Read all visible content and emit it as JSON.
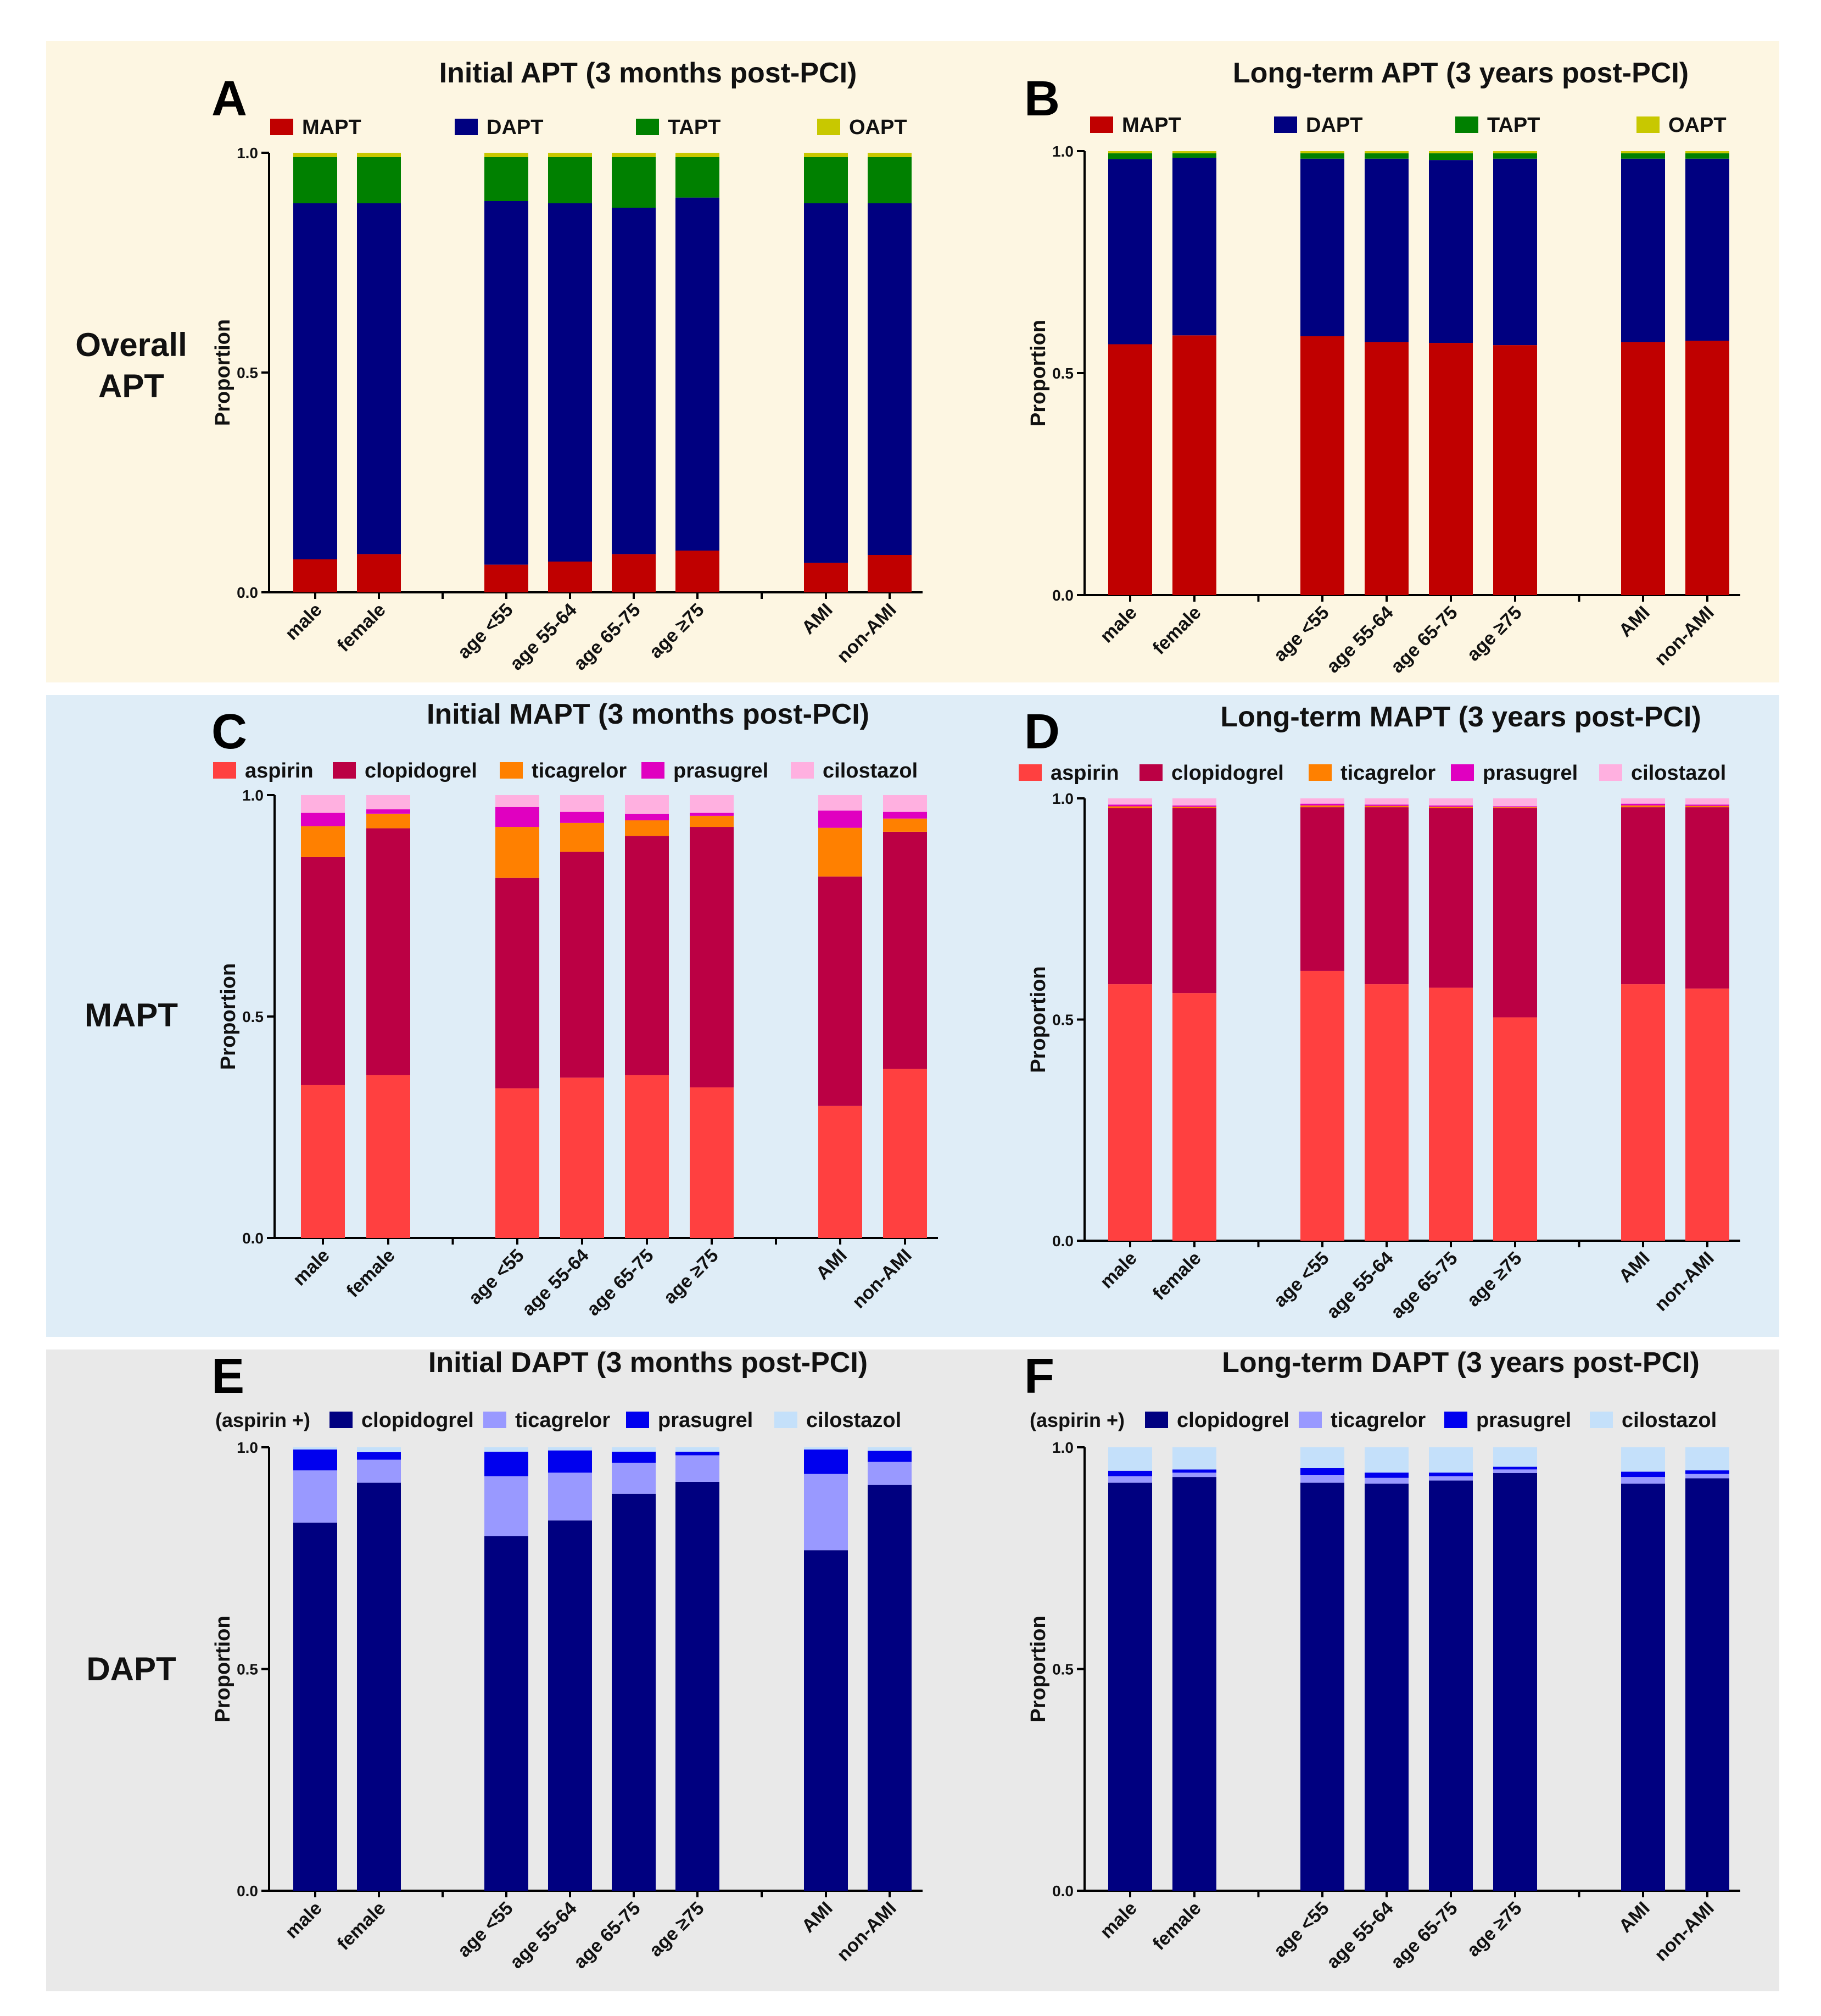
{
  "row_labels": [
    "Overall APT",
    "MAPT",
    "DAPT"
  ],
  "colors": {
    "band_apt": "#fdf6e2",
    "band_mapt": "#dfedf7",
    "band_dapt": "#e9e9e9"
  },
  "chart_data": [
    {
      "panel": "A",
      "type": "bar",
      "stacked": true,
      "title": "Initial APT (3 months post-PCI)",
      "ylabel": "Proportion",
      "ylim": [
        0,
        1
      ],
      "yticks": [
        "0.0",
        "0.5",
        "1.0"
      ],
      "categories": [
        "male",
        "female",
        "age <55",
        "age 55-64",
        "age 65-75",
        "age ≥75",
        "AMI",
        "non-AMI"
      ],
      "series": [
        {
          "name": "MAPT",
          "color": "#c00000",
          "values": [
            0.075,
            0.087,
            0.063,
            0.07,
            0.087,
            0.095,
            0.067,
            0.085
          ]
        },
        {
          "name": "DAPT",
          "color": "#000080",
          "values": [
            0.81,
            0.798,
            0.827,
            0.815,
            0.788,
            0.803,
            0.818,
            0.8
          ]
        },
        {
          "name": "TAPT",
          "color": "#008000",
          "values": [
            0.105,
            0.105,
            0.1,
            0.105,
            0.115,
            0.092,
            0.105,
            0.105
          ]
        },
        {
          "name": "OAPT",
          "color": "#c8c800",
          "values": [
            0.01,
            0.01,
            0.01,
            0.01,
            0.01,
            0.01,
            0.01,
            0.01
          ]
        }
      ]
    },
    {
      "panel": "B",
      "type": "bar",
      "stacked": true,
      "title": "Long-term APT (3 years post-PCI)",
      "ylabel": "Proportion",
      "ylim": [
        0,
        1
      ],
      "yticks": [
        "0.0",
        "0.5",
        "1.0"
      ],
      "categories": [
        "male",
        "female",
        "age <55",
        "age 55-64",
        "age 65-75",
        "age ≥75",
        "AMI",
        "non-AMI"
      ],
      "series": [
        {
          "name": "MAPT",
          "color": "#c00000",
          "values": [
            0.565,
            0.585,
            0.583,
            0.57,
            0.568,
            0.563,
            0.57,
            0.573
          ]
        },
        {
          "name": "DAPT",
          "color": "#000080",
          "values": [
            0.417,
            0.4,
            0.4,
            0.413,
            0.412,
            0.42,
            0.413,
            0.41
          ]
        },
        {
          "name": "TAPT",
          "color": "#008000",
          "values": [
            0.013,
            0.01,
            0.012,
            0.012,
            0.015,
            0.012,
            0.012,
            0.012
          ]
        },
        {
          "name": "OAPT",
          "color": "#c8c800",
          "values": [
            0.005,
            0.005,
            0.005,
            0.005,
            0.005,
            0.005,
            0.005,
            0.005
          ]
        }
      ]
    },
    {
      "panel": "C",
      "type": "bar",
      "stacked": true,
      "title": "Initial MAPT (3 months post-PCI)",
      "ylabel": "Proportion",
      "ylim": [
        0,
        1
      ],
      "yticks": [
        "0.0",
        "0.5",
        "1.0"
      ],
      "categories": [
        "male",
        "female",
        "age <55",
        "age 55-64",
        "age 65-75",
        "age ≥75",
        "AMI",
        "non-AMI"
      ],
      "series": [
        {
          "name": "aspirin",
          "color": "#ff4040",
          "values": [
            0.345,
            0.368,
            0.338,
            0.362,
            0.368,
            0.34,
            0.298,
            0.382
          ]
        },
        {
          "name": "clopidogrel",
          "color": "#bb0044",
          "values": [
            0.515,
            0.557,
            0.475,
            0.51,
            0.54,
            0.588,
            0.518,
            0.535
          ]
        },
        {
          "name": "ticagrelor",
          "color": "#ff8000",
          "values": [
            0.07,
            0.033,
            0.115,
            0.065,
            0.035,
            0.025,
            0.11,
            0.03
          ]
        },
        {
          "name": "prasugrel",
          "color": "#e000c0",
          "values": [
            0.03,
            0.01,
            0.045,
            0.025,
            0.015,
            0.007,
            0.039,
            0.015
          ]
        },
        {
          "name": "cilostazol",
          "color": "#ffb0e0",
          "values": [
            0.04,
            0.032,
            0.027,
            0.038,
            0.042,
            0.04,
            0.035,
            0.038
          ]
        }
      ]
    },
    {
      "panel": "D",
      "type": "bar",
      "stacked": true,
      "title": "Long-term MAPT (3 years post-PCI)",
      "ylabel": "Proportion",
      "ylim": [
        0,
        1
      ],
      "yticks": [
        "0.0",
        "0.5",
        "1.0"
      ],
      "categories": [
        "male",
        "female",
        "age <55",
        "age 55-64",
        "age 65-75",
        "age ≥75",
        "AMI",
        "non-AMI"
      ],
      "series": [
        {
          "name": "aspirin",
          "color": "#ff4040",
          "values": [
            0.58,
            0.56,
            0.61,
            0.58,
            0.572,
            0.505,
            0.58,
            0.57
          ]
        },
        {
          "name": "clopidogrel",
          "color": "#bb0044",
          "values": [
            0.398,
            0.418,
            0.37,
            0.4,
            0.406,
            0.473,
            0.4,
            0.41
          ]
        },
        {
          "name": "ticagrelor",
          "color": "#ff8000",
          "values": [
            0.004,
            0.003,
            0.004,
            0.003,
            0.003,
            0.002,
            0.004,
            0.003
          ]
        },
        {
          "name": "prasugrel",
          "color": "#e000c0",
          "values": [
            0.004,
            0.003,
            0.004,
            0.003,
            0.003,
            0.002,
            0.004,
            0.003
          ]
        },
        {
          "name": "cilostazol",
          "color": "#ffb0e0",
          "values": [
            0.014,
            0.016,
            0.012,
            0.014,
            0.016,
            0.018,
            0.012,
            0.014
          ]
        }
      ]
    },
    {
      "panel": "E",
      "type": "bar",
      "stacked": true,
      "title": "Initial DAPT (3 months post-PCI)",
      "legend_prefix": "(aspirin +)",
      "ylabel": "Proportion",
      "ylim": [
        0,
        1
      ],
      "yticks": [
        "0.0",
        "0.5",
        "1.0"
      ],
      "categories": [
        "male",
        "female",
        "age <55",
        "age 55-64",
        "age 65-75",
        "age ≥75",
        "AMI",
        "non-AMI"
      ],
      "series": [
        {
          "name": "clopidogrel",
          "color": "#000080",
          "values": [
            0.83,
            0.92,
            0.8,
            0.835,
            0.895,
            0.922,
            0.768,
            0.915
          ]
        },
        {
          "name": "ticagrelor",
          "color": "#9999ff",
          "values": [
            0.118,
            0.052,
            0.135,
            0.108,
            0.07,
            0.06,
            0.172,
            0.052
          ]
        },
        {
          "name": "prasugrel",
          "color": "#0000ee",
          "values": [
            0.047,
            0.017,
            0.055,
            0.05,
            0.025,
            0.008,
            0.055,
            0.025
          ]
        },
        {
          "name": "cilostazol",
          "color": "#c4e0fa",
          "values": [
            0.005,
            0.011,
            0.01,
            0.007,
            0.01,
            0.01,
            0.005,
            0.008
          ]
        }
      ]
    },
    {
      "panel": "F",
      "type": "bar",
      "stacked": true,
      "title": "Long-term DAPT (3 years post-PCI)",
      "legend_prefix": "(aspirin +)",
      "ylabel": "Proportion",
      "ylim": [
        0,
        1
      ],
      "yticks": [
        "0.0",
        "0.5",
        "1.0"
      ],
      "categories": [
        "male",
        "female",
        "age <55",
        "age 55-64",
        "age 65-75",
        "age ≥75",
        "AMI",
        "non-AMI"
      ],
      "series": [
        {
          "name": "clopidogrel",
          "color": "#000080",
          "values": [
            0.92,
            0.933,
            0.92,
            0.918,
            0.925,
            0.942,
            0.918,
            0.93
          ]
        },
        {
          "name": "ticagrelor",
          "color": "#9999ff",
          "values": [
            0.015,
            0.01,
            0.018,
            0.013,
            0.01,
            0.008,
            0.015,
            0.01
          ]
        },
        {
          "name": "prasugrel",
          "color": "#0000ee",
          "values": [
            0.012,
            0.007,
            0.015,
            0.012,
            0.008,
            0.006,
            0.012,
            0.008
          ]
        },
        {
          "name": "cilostazol",
          "color": "#c4e0fa",
          "values": [
            0.053,
            0.05,
            0.047,
            0.057,
            0.057,
            0.044,
            0.055,
            0.052
          ]
        }
      ]
    }
  ]
}
